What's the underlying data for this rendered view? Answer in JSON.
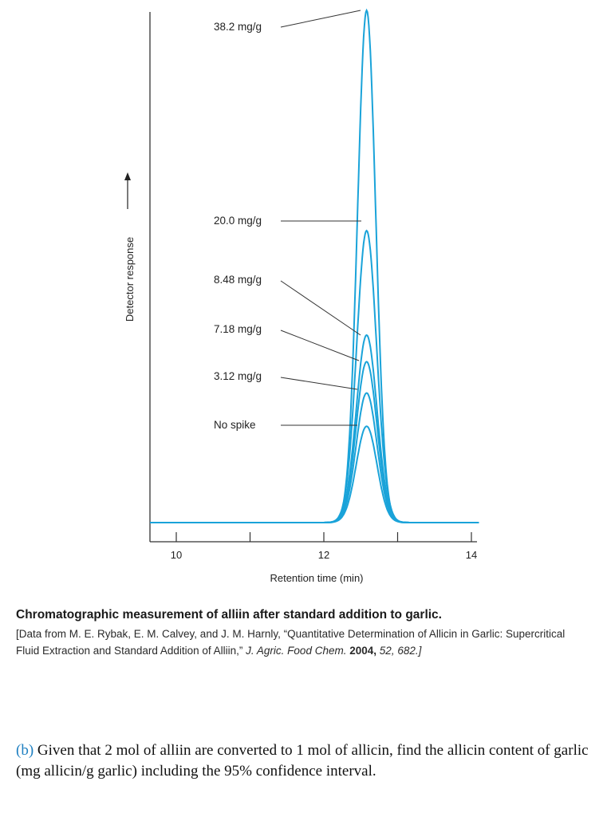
{
  "chart_data": {
    "type": "line",
    "xlabel": "Retention time (min)",
    "ylabel": "Detector response",
    "xlim": [
      9.6,
      14.1
    ],
    "x_ticks": [
      "10",
      "12",
      "14"
    ],
    "peak_center": 12.58,
    "series": [
      {
        "label": "38.2 mg/g",
        "peak_height": 1.0,
        "sigma": 0.123
      },
      {
        "label": "20.0 mg/g",
        "peak_height": 0.57,
        "sigma": 0.135
      },
      {
        "label": "8.48 mg/g",
        "peak_height": 0.366,
        "sigma": 0.14
      },
      {
        "label": "7.18 mg/g",
        "peak_height": 0.314,
        "sigma": 0.14
      },
      {
        "label": "3.12 mg/g",
        "peak_height": 0.253,
        "sigma": 0.14
      },
      {
        "label": "No spike",
        "peak_height": 0.188,
        "sigma": 0.14
      }
    ],
    "colors": {
      "curve": "#1aa3d9",
      "axis": "#333333",
      "leader": "#333333"
    }
  },
  "caption": {
    "title": "Chromatographic measurement of alliin after standard addition to garlic.",
    "source_a": "[Data from M. E. Rybak, E. M. Calvey, and J. M. Harnly, “Quantitative Determination of Allicin in Garlic: Supercritical Fluid Extraction and Standard Addition of Alliin,” ",
    "journal": "J. Agric. Food Chem.",
    "year": "2004,",
    "vol_page": "52, 682.]"
  },
  "question": {
    "label": "(b)",
    "text": "Given that 2 mol of alliin are converted to 1 mol of allicin, find the allicin content of garlic (mg allicin/g garlic) including the 95% confidence interval."
  }
}
